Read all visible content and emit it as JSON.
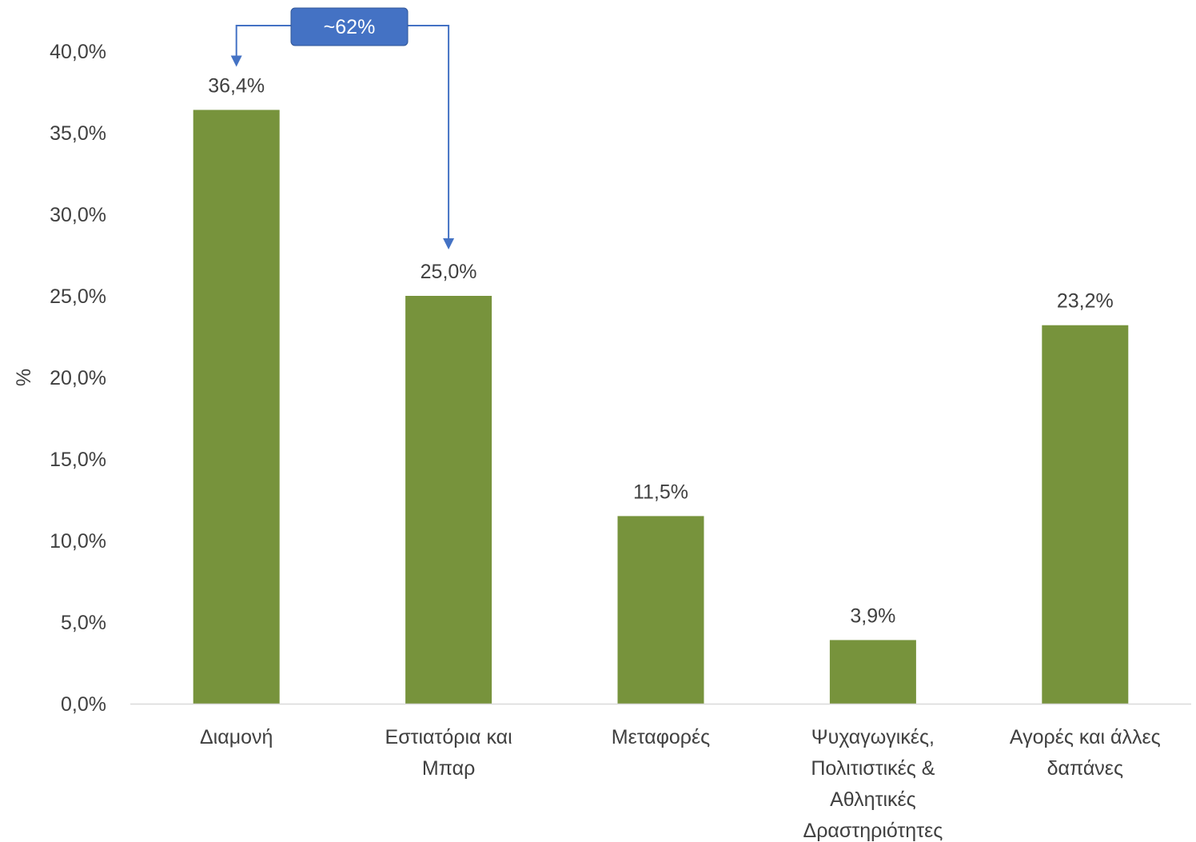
{
  "chart_data": {
    "type": "bar",
    "title": "",
    "xlabel": "",
    "ylabel": "%",
    "ylim": [
      0,
      40
    ],
    "y_tick_step": 5,
    "y_tick_labels": [
      "0,0%",
      "5,0%",
      "10,0%",
      "15,0%",
      "20,0%",
      "25,0%",
      "30,0%",
      "35,0%",
      "40,0%"
    ],
    "grid": false,
    "legend": "none",
    "categories": [
      [
        "Διαμονή"
      ],
      [
        "Εστιατόρια και",
        "Μπαρ"
      ],
      [
        "Μεταφορές"
      ],
      [
        "Ψυχαγωγικές,",
        "Πολιτιστικές &",
        "Αθλητικές",
        "Δραστηριότητες"
      ],
      [
        "Αγορές και άλλες",
        "δαπάνες"
      ]
    ],
    "values": [
      36.4,
      25.0,
      11.5,
      3.9,
      23.2
    ],
    "data_labels": [
      "36,4%",
      "25,0%",
      "11,5%",
      "3,9%",
      "23,2%"
    ],
    "bar_color": "#77933C",
    "annotation": {
      "text": "~62%",
      "from_category_index": 0,
      "to_category_index": 1,
      "color": "#4472C4"
    }
  }
}
